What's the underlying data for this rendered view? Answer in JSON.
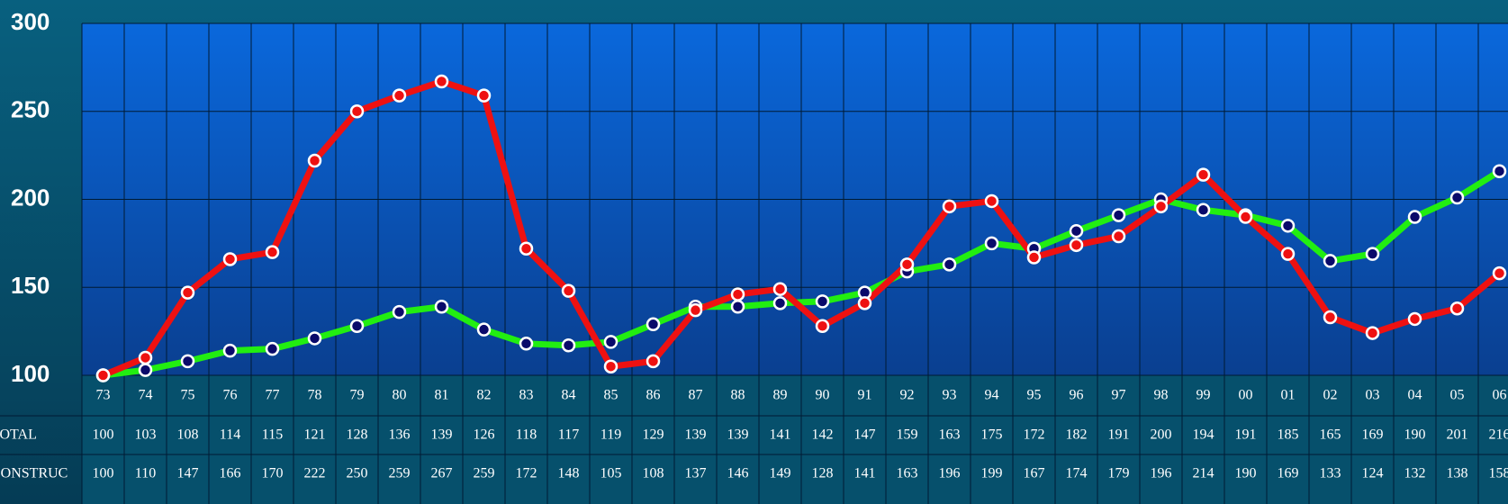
{
  "chart_data": {
    "type": "line",
    "categories": [
      "73",
      "74",
      "75",
      "76",
      "77",
      "78",
      "79",
      "80",
      "81",
      "82",
      "83",
      "84",
      "85",
      "86",
      "87",
      "88",
      "89",
      "90",
      "91",
      "92",
      "93",
      "94",
      "95",
      "96",
      "97",
      "98",
      "99",
      "00",
      "01",
      "02",
      "03",
      "04",
      "05",
      "06"
    ],
    "series": [
      {
        "name": "TOTAL",
        "color": "#22ee11",
        "marker": "#0a0a6a",
        "values": [
          100,
          103,
          108,
          114,
          115,
          121,
          128,
          136,
          139,
          126,
          118,
          117,
          119,
          129,
          139,
          139,
          141,
          142,
          147,
          159,
          163,
          175,
          172,
          182,
          191,
          200,
          194,
          191,
          185,
          165,
          169,
          190,
          201,
          216
        ]
      },
      {
        "name": "CONSTRUC",
        "color": "#ee1111",
        "marker": "#ee1111",
        "values": [
          100,
          110,
          147,
          166,
          170,
          222,
          250,
          259,
          267,
          259,
          172,
          148,
          105,
          108,
          137,
          146,
          149,
          128,
          141,
          163,
          196,
          199,
          167,
          174,
          179,
          196,
          214,
          190,
          169,
          133,
          124,
          132,
          138,
          158
        ]
      }
    ],
    "ylim": [
      100,
      300
    ],
    "yticks": [
      100,
      150,
      200,
      250,
      300
    ],
    "grid": true
  }
}
